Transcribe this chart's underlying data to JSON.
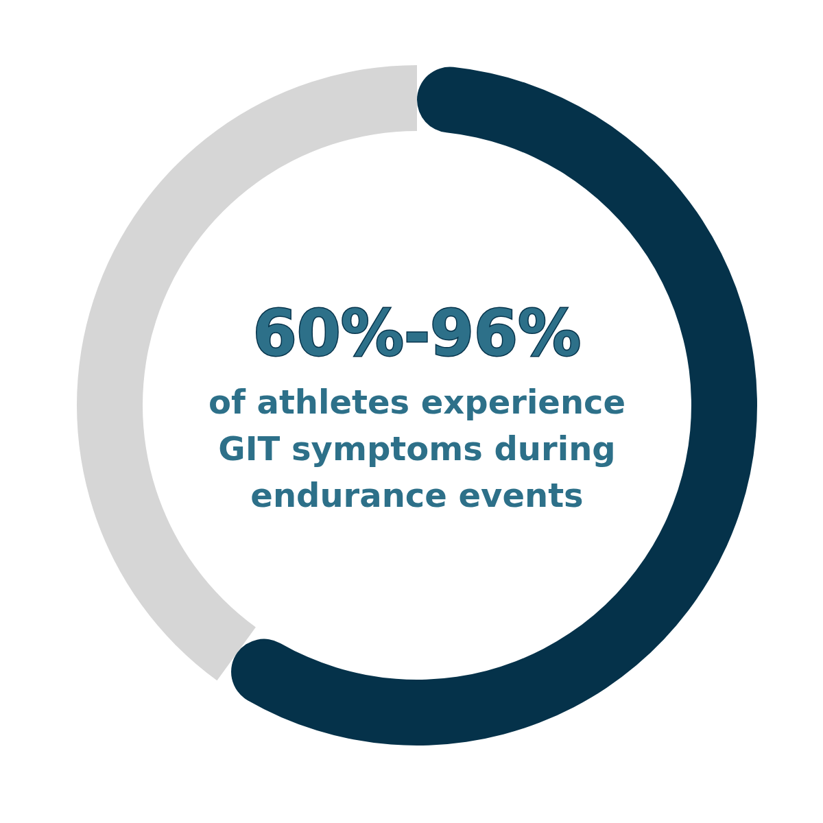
{
  "chart_data": {
    "type": "donut",
    "title": "60%-96%",
    "subtitle": "of athletes experience GIT symptoms during endurance events",
    "categories": [
      null,
      null
    ],
    "values": [
      60,
      40
    ],
    "colors": [
      "#05324a",
      "#d6d6d6"
    ]
  }
}
